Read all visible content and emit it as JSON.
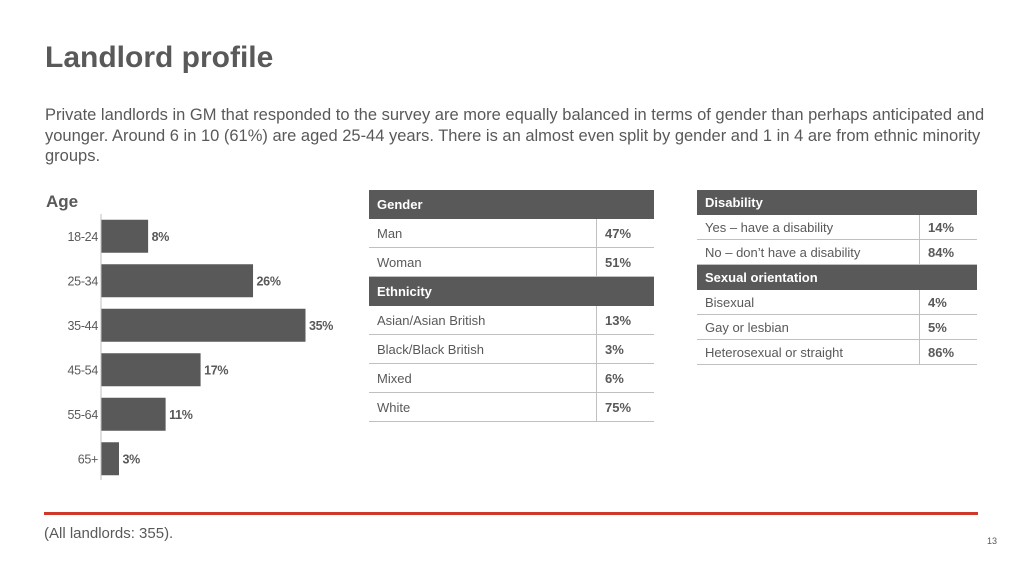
{
  "page": {
    "title": "Landlord profile",
    "intro": "Private landlords in GM that responded to the survey are more equally balanced in terms of gender than perhaps anticipated and younger. Around 6 in 10 (61%) are aged 25-44 years. There is an almost even split by gender and 1 in 4 are from ethnic minority groups.",
    "footnote": "(All landlords: 355).",
    "page_number": "13"
  },
  "colors": {
    "bar": "#595959",
    "header": "#595959",
    "accent_rule": "#d0382a",
    "text": "#595959"
  },
  "chart_data": {
    "type": "bar",
    "orientation": "horizontal",
    "title": "Age",
    "categories": [
      "18-24",
      "25-34",
      "35-44",
      "45-54",
      "55-64",
      "65+"
    ],
    "values": [
      8,
      26,
      35,
      17,
      11,
      3
    ],
    "data_labels": [
      "8%",
      "26%",
      "35%",
      "17%",
      "11%",
      "3%"
    ],
    "unit": "%",
    "xlim": [
      0,
      35
    ],
    "grid": false,
    "legend": "none"
  },
  "gender_table": {
    "header": "Gender",
    "rows": [
      {
        "label": "Man",
        "value": "47%"
      },
      {
        "label": "Woman",
        "value": "51%"
      }
    ]
  },
  "ethnicity_table": {
    "header": "Ethnicity",
    "rows": [
      {
        "label": "Asian/Asian British",
        "value": "13%"
      },
      {
        "label": "Black/Black British",
        "value": "3%"
      },
      {
        "label": "Mixed",
        "value": "6%"
      },
      {
        "label": "White",
        "value": "75%"
      }
    ]
  },
  "disability_table": {
    "header": "Disability",
    "rows": [
      {
        "label": "Yes – have a disability",
        "value": "14%"
      },
      {
        "label": "No – don’t have a disability",
        "value": "84%"
      }
    ]
  },
  "sexual_orientation_table": {
    "header": "Sexual orientation",
    "rows": [
      {
        "label": "Bisexual",
        "value": "4%"
      },
      {
        "label": "Gay or lesbian",
        "value": "5%"
      },
      {
        "label": "Heterosexual or straight",
        "value": "86%"
      }
    ]
  }
}
